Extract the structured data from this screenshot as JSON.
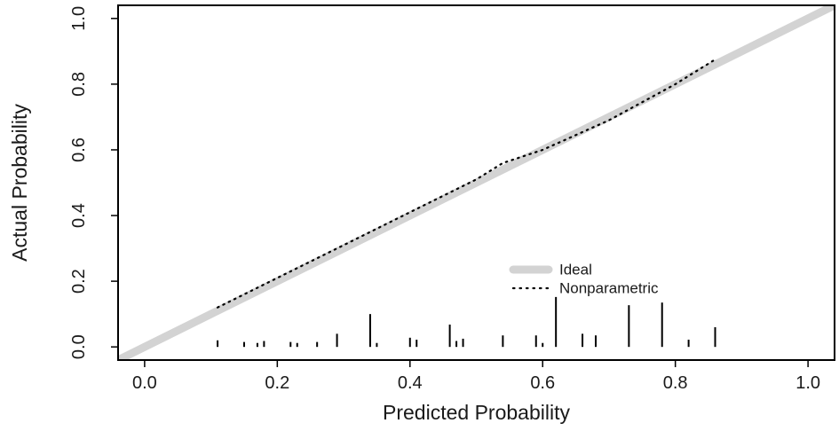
{
  "chart_data": {
    "type": "line",
    "title": "",
    "xlabel": "Predicted Probability",
    "ylabel": "Actual Probability",
    "xlim": [
      -0.04,
      1.04
    ],
    "ylim": [
      -0.04,
      1.04
    ],
    "xticks": [
      "0.0",
      "0.2",
      "0.4",
      "0.6",
      "0.8",
      "1.0"
    ],
    "yticks": [
      "0.0",
      "0.2",
      "0.4",
      "0.6",
      "0.8",
      "1.0"
    ],
    "grid": false,
    "legend_position": "bottom-right",
    "series": [
      {
        "name": "Ideal",
        "style": "thick-solid",
        "color": "#d3d3d3",
        "x": [
          -0.04,
          1.04
        ],
        "y": [
          -0.04,
          1.04
        ]
      },
      {
        "name": "Nonparametric",
        "style": "dotted",
        "color": "#000000",
        "x": [
          0.11,
          0.2,
          0.3,
          0.4,
          0.5,
          0.54,
          0.6,
          0.7,
          0.8,
          0.86
        ],
        "y": [
          0.12,
          0.21,
          0.31,
          0.41,
          0.51,
          0.56,
          0.6,
          0.69,
          0.8,
          0.875
        ]
      }
    ],
    "rug": {
      "color": "#000000",
      "x": [
        0.11,
        0.15,
        0.17,
        0.18,
        0.22,
        0.23,
        0.26,
        0.29,
        0.34,
        0.35,
        0.4,
        0.41,
        0.46,
        0.47,
        0.48,
        0.54,
        0.59,
        0.6,
        0.62,
        0.66,
        0.68,
        0.73,
        0.78,
        0.82,
        0.86
      ],
      "height": [
        0.02,
        0.015,
        0.012,
        0.018,
        0.015,
        0.012,
        0.015,
        0.04,
        0.1,
        0.012,
        0.028,
        0.022,
        0.068,
        0.018,
        0.025,
        0.035,
        0.035,
        0.012,
        0.152,
        0.04,
        0.035,
        0.127,
        0.135,
        0.022,
        0.06
      ]
    }
  }
}
